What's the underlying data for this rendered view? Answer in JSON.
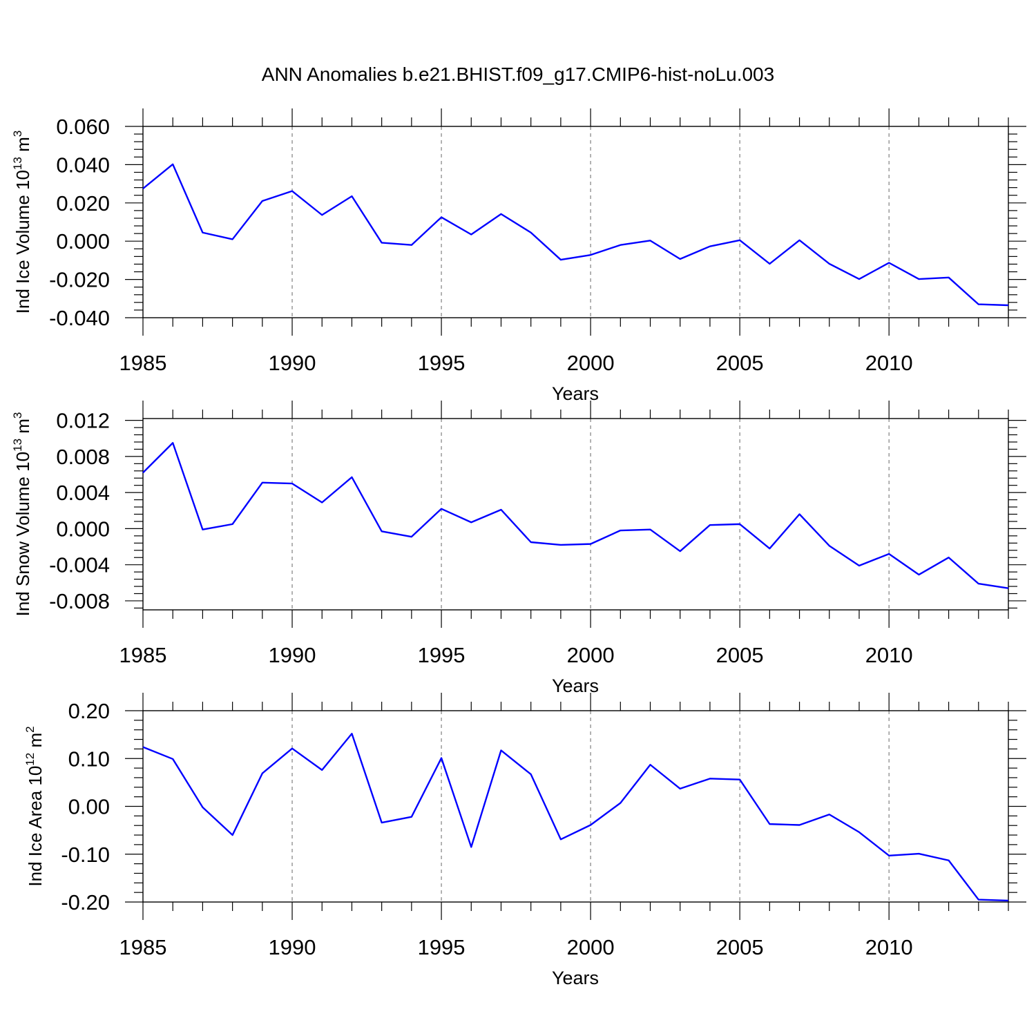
{
  "title": "ANN Anomalies b.e21.BHIST.f09_g17.CMIP6-hist-noLu.003",
  "colors": {
    "line": "#0000ff",
    "axis": "#000000",
    "grid": "#7f7f7f"
  },
  "chart_data": [
    {
      "type": "line",
      "ylabel": {
        "text": "Ind Ice Volume 10",
        "sup": "13",
        "unit": " m",
        "unit_sup": "3"
      },
      "xlabel": "Years",
      "xlim": [
        1985,
        2014
      ],
      "ylim": [
        -0.04,
        0.06
      ],
      "yticks": [
        -0.04,
        -0.02,
        0.0,
        0.02,
        0.04,
        0.06
      ],
      "ytick_labels": [
        "-0.040",
        "-0.020",
        "0.000",
        "0.020",
        "0.040",
        "0.060"
      ],
      "xticks": [
        1985,
        1990,
        1995,
        2000,
        2005,
        2010
      ],
      "xtick_labels": [
        "1985",
        "1990",
        "1995",
        "2000",
        "2005",
        "2010"
      ],
      "grid": "vertical dashed at major x ticks",
      "x": [
        1985,
        1986,
        1987,
        1988,
        1989,
        1990,
        1991,
        1992,
        1993,
        1994,
        1995,
        1996,
        1997,
        1998,
        1999,
        2000,
        2001,
        2002,
        2003,
        2004,
        2005,
        2006,
        2007,
        2008,
        2009,
        2010,
        2011,
        2012,
        2013,
        2014
      ],
      "values": [
        0.0275,
        0.0402,
        0.0045,
        0.001,
        0.021,
        0.0262,
        0.0137,
        0.0235,
        -0.0008,
        -0.002,
        0.0125,
        0.0035,
        0.0142,
        0.0045,
        -0.0097,
        -0.0072,
        -0.002,
        0.0003,
        -0.0093,
        -0.0027,
        0.0005,
        -0.0118,
        0.0005,
        -0.0118,
        -0.0198,
        -0.0113,
        -0.0198,
        -0.019,
        -0.033,
        -0.0335
      ]
    },
    {
      "type": "line",
      "ylabel": {
        "text": "Ind Snow Volume 10",
        "sup": "13",
        "unit": " m",
        "unit_sup": "3"
      },
      "xlabel": "Years",
      "xlim": [
        1985,
        2014
      ],
      "ylim": [
        -0.009,
        0.0122
      ],
      "yticks": [
        -0.008,
        -0.004,
        0.0,
        0.004,
        0.008,
        0.012
      ],
      "ytick_labels": [
        "-0.008",
        "-0.004",
        "0.000",
        "0.004",
        "0.008",
        "0.012"
      ],
      "xticks": [
        1985,
        1990,
        1995,
        2000,
        2005,
        2010
      ],
      "xtick_labels": [
        "1985",
        "1990",
        "1995",
        "2000",
        "2005",
        "2010"
      ],
      "grid": "vertical dashed at major x ticks",
      "x": [
        1985,
        1986,
        1987,
        1988,
        1989,
        1990,
        1991,
        1992,
        1993,
        1994,
        1995,
        1996,
        1997,
        1998,
        1999,
        2000,
        2001,
        2002,
        2003,
        2004,
        2005,
        2006,
        2007,
        2008,
        2009,
        2010,
        2011,
        2012,
        2013,
        2014
      ],
      "values": [
        0.0062,
        0.0095,
        -0.0001,
        0.0005,
        0.0051,
        0.005,
        0.0029,
        0.0057,
        -0.0003,
        -0.0009,
        0.0022,
        0.0007,
        0.0021,
        -0.0015,
        -0.0018,
        -0.0017,
        -0.0002,
        -0.0001,
        -0.0025,
        0.0004,
        0.0005,
        -0.0022,
        0.0016,
        -0.0019,
        -0.0041,
        -0.0028,
        -0.0051,
        -0.0032,
        -0.0061,
        -0.0066
      ]
    },
    {
      "type": "line",
      "ylabel": {
        "text": "Ind Ice Area 10",
        "sup": "12",
        "unit": " m",
        "unit_sup": "2"
      },
      "xlabel": "Years",
      "xlim": [
        1985,
        2014
      ],
      "ylim": [
        -0.2,
        0.2
      ],
      "yticks": [
        -0.2,
        -0.1,
        0.0,
        0.1,
        0.2
      ],
      "ytick_labels": [
        "-0.20",
        "-0.10",
        "0.00",
        "0.10",
        "0.20"
      ],
      "xticks": [
        1985,
        1990,
        1995,
        2000,
        2005,
        2010
      ],
      "xtick_labels": [
        "1985",
        "1990",
        "1995",
        "2000",
        "2005",
        "2010"
      ],
      "grid": "vertical dashed at major x ticks",
      "x": [
        1985,
        1986,
        1987,
        1988,
        1989,
        1990,
        1991,
        1992,
        1993,
        1994,
        1995,
        1996,
        1997,
        1998,
        1999,
        2000,
        2001,
        2002,
        2003,
        2004,
        2005,
        2006,
        2007,
        2008,
        2009,
        2010,
        2011,
        2012,
        2013,
        2014
      ],
      "values": [
        0.124,
        0.099,
        -0.002,
        -0.06,
        0.069,
        0.121,
        0.076,
        0.152,
        -0.034,
        -0.022,
        0.101,
        -0.085,
        0.117,
        0.067,
        -0.069,
        -0.039,
        0.007,
        0.087,
        0.037,
        0.058,
        0.056,
        -0.037,
        -0.039,
        -0.017,
        -0.054,
        -0.103,
        -0.099,
        -0.113,
        -0.195,
        -0.197
      ]
    }
  ]
}
